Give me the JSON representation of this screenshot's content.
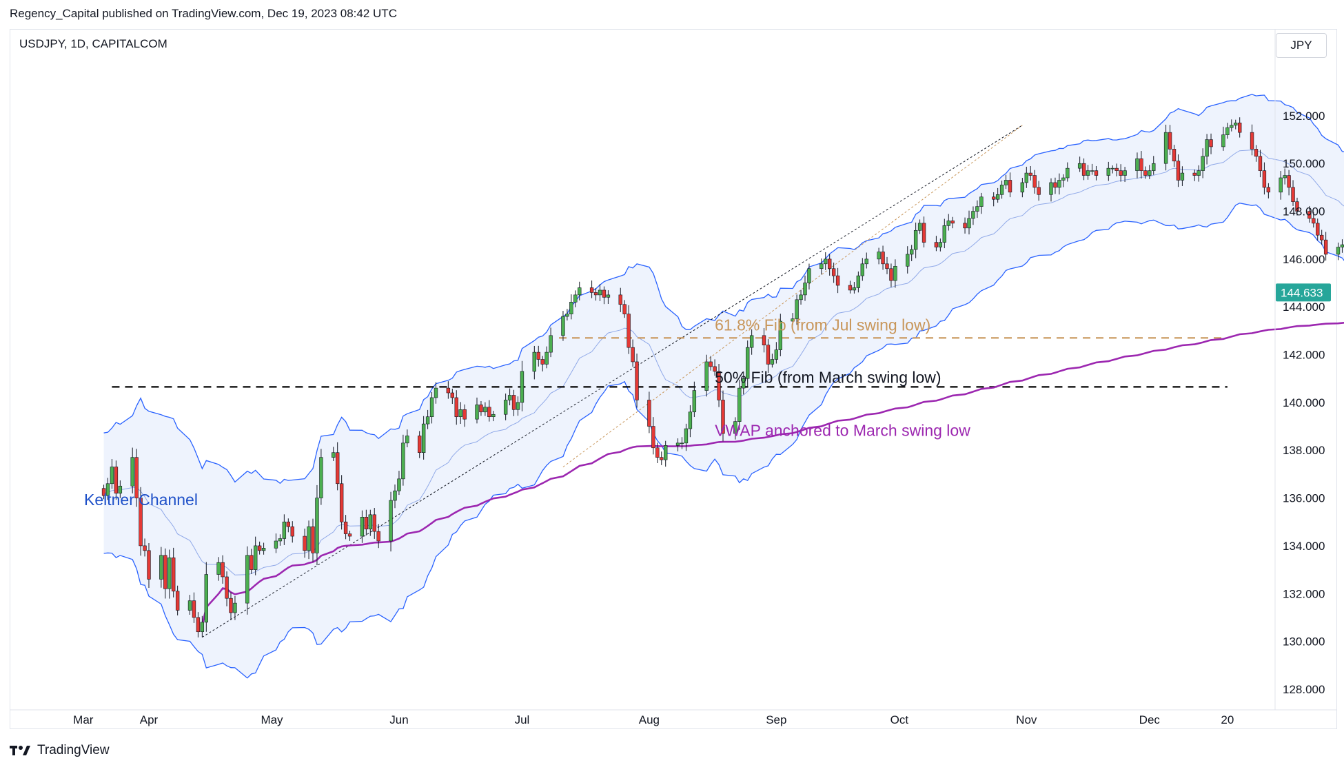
{
  "header": {
    "publisher_line": "Regency_Capital published on TradingView.com, Dec 19, 2023 08:42 UTC",
    "symbol_line": "USDJPY, 1D, CAPITALCOM",
    "currency_button": "JPY",
    "brand": "TradingView"
  },
  "colors": {
    "up_candle": "#4caf50",
    "down_candle": "#e53935",
    "keltner_band": "#2962ff",
    "keltner_fill": "#eef3fd",
    "vwap": "#9c27b0",
    "fib_618": "#c8965a",
    "fib_50": "#000000",
    "price_label_bg": "#26a69a"
  },
  "chart_data": {
    "type": "candlestick",
    "symbol": "USDJPY",
    "interval": "1D",
    "y_axis_side": "right",
    "y_ticks": [
      128,
      130,
      132,
      134,
      136,
      138,
      140,
      142,
      144,
      146,
      148,
      150,
      152
    ],
    "y_tick_labels": [
      "128.000",
      "130.000",
      "132.000",
      "134.000",
      "136.000",
      "138.000",
      "140.000",
      "142.000",
      "144.000",
      "146.000",
      "148.000",
      "150.000",
      "152.000"
    ],
    "ylim": [
      126.7,
      155.4
    ],
    "x_tick_labels": [
      "Mar",
      "Apr",
      "May",
      "Jun",
      "Jul",
      "Aug",
      "Sep",
      "Oct",
      "Nov",
      "Dec",
      "20"
    ],
    "x_ticks_day_index": [
      -16,
      0,
      30,
      61,
      91,
      122,
      153,
      183,
      214,
      244,
      263
    ],
    "x_first_day_index": -13,
    "last_price_label": "144.633",
    "closes": [
      136.1,
      136.6,
      137.3,
      136.2,
      136.5,
      137.7,
      136.0,
      134.0,
      133.8,
      132.6,
      133.6,
      132.2,
      133.5,
      132.1,
      131.3,
      131.7,
      131.0,
      130.4,
      130.8,
      132.8,
      133.3,
      132.7,
      131.8,
      131.2,
      131.6,
      133.6,
      133.0,
      134.0,
      133.8,
      133.9,
      134.2,
      134.3,
      135.0,
      134.8,
      134.4,
      133.8,
      134.8,
      133.7,
      136.0,
      137.7,
      137.9,
      136.6,
      135.0,
      134.5,
      134.4,
      135.2,
      134.7,
      135.3,
      134.6,
      134.2,
      135.9,
      136.3,
      136.8,
      138.3,
      138.6,
      137.9,
      139.1,
      139.4,
      140.2,
      140.6,
      140.4,
      140.2,
      139.4,
      139.7,
      139.3,
      139.9,
      139.6,
      139.8,
      139.4,
      139.5,
      140.1,
      140.3,
      139.7,
      140.0,
      141.3,
      142.1,
      141.8,
      141.6,
      142.1,
      142.8,
      143.6,
      143.7,
      144.2,
      144.5,
      144.8,
      144.6,
      144.5,
      144.7,
      144.4,
      144.5,
      144.1,
      143.7,
      142.3,
      141.7,
      140.1,
      139.0,
      138.1,
      137.7,
      137.6,
      138.2,
      138.3,
      138.3,
      138.9,
      139.6,
      140.5,
      141.7,
      141.5,
      141.3,
      140.1,
      138.7,
      139.2,
      140.6,
      141.0,
      142.3,
      142.8,
      142.4,
      141.6,
      141.8,
      142.2,
      143.4,
      143.5,
      144.3,
      144.5,
      145.0,
      145.6,
      145.8,
      146.0,
      145.6,
      145.3,
      144.9,
      144.7,
      144.8,
      145.3,
      145.8,
      146.0,
      146.3,
      145.8,
      145.6,
      145.1,
      145.7,
      146.2,
      146.4,
      147.2,
      147.5,
      146.7,
      146.5,
      146.7,
      147.4,
      147.6,
      147.5,
      147.3,
      147.7,
      148.0,
      148.2,
      148.6,
      148.5,
      148.7,
      149.1,
      149.3,
      148.8,
      149.2,
      149.6,
      149.5,
      149.0,
      148.7,
      149.2,
      149.0,
      149.3,
      149.4,
      149.8,
      150.0,
      149.5,
      149.7,
      149.7,
      149.5,
      149.8,
      149.8,
      149.7,
      149.5,
      149.7,
      150.2,
      149.7,
      149.5,
      149.7,
      150.0,
      151.3,
      150.6,
      150.1,
      149.3,
      149.6,
      149.5,
      149.7,
      150.3,
      151.0,
      150.7,
      151.2,
      151.5,
      151.6,
      151.7,
      151.3,
      150.6,
      150.3,
      149.7,
      149.0,
      148.8,
      149.4,
      149.5,
      149.0,
      148.4,
      148.0,
      147.7,
      147.5,
      147.0,
      146.8,
      146.2,
      146.5,
      146.6,
      147.2,
      147.0,
      146.6,
      143.8,
      144.6,
      145.9,
      144.1,
      143.0,
      142.4,
      142.0,
      142.6,
      142.9,
      144.6
    ]
  },
  "annotations": {
    "fib_618_label": "61.8% Fib (from Jul swing low)",
    "fib_618_level": 142.7,
    "fib_50_label": "50% Fib (from March swing low)",
    "fib_50_level": 140.65,
    "vwap_label": "VWAP anchored to March swing low",
    "keltner_label": "Keltner Channel"
  }
}
